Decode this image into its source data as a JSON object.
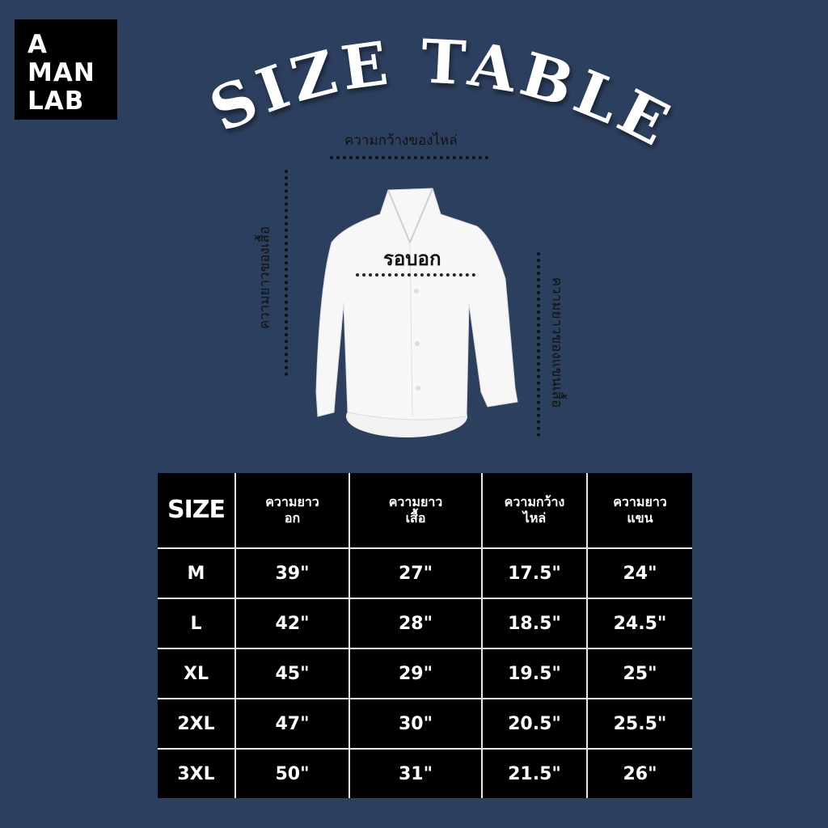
{
  "brand": {
    "lines": [
      "A",
      "MAN",
      "LAB"
    ]
  },
  "title": "SIZE TABLE",
  "diagram": {
    "shoulder_width_label": "ความกว้างของไหล่",
    "shirt_length_label": "ความยาวของเสื้อ",
    "chest_label": "รอบอก",
    "sleeve_length_label": "ความยาวของแขนเสื้อ"
  },
  "table": {
    "headers": [
      {
        "line1": "SIZE",
        "line2": ""
      },
      {
        "line1": "ความยาว",
        "line2": "อก"
      },
      {
        "line1": "ความยาว",
        "line2": "เสื้อ"
      },
      {
        "line1": "ความกว้าง",
        "line2": "ไหล่"
      },
      {
        "line1": "ความยาว",
        "line2": "แขน"
      }
    ],
    "rows": [
      [
        "M",
        "39\"",
        "27\"",
        "17.5\"",
        "24\""
      ],
      [
        "L",
        "42\"",
        "28\"",
        "18.5\"",
        "24.5\""
      ],
      [
        "XL",
        "45\"",
        "29\"",
        "19.5\"",
        "25\""
      ],
      [
        "2XL",
        "47\"",
        "30\"",
        "20.5\"",
        "25.5\""
      ],
      [
        "3XL",
        "50\"",
        "31\"",
        "21.5\"",
        "26\""
      ]
    ]
  },
  "colors": {
    "background": "#2d3f5e",
    "table_bg": "#000000",
    "text": "#ffffff"
  }
}
